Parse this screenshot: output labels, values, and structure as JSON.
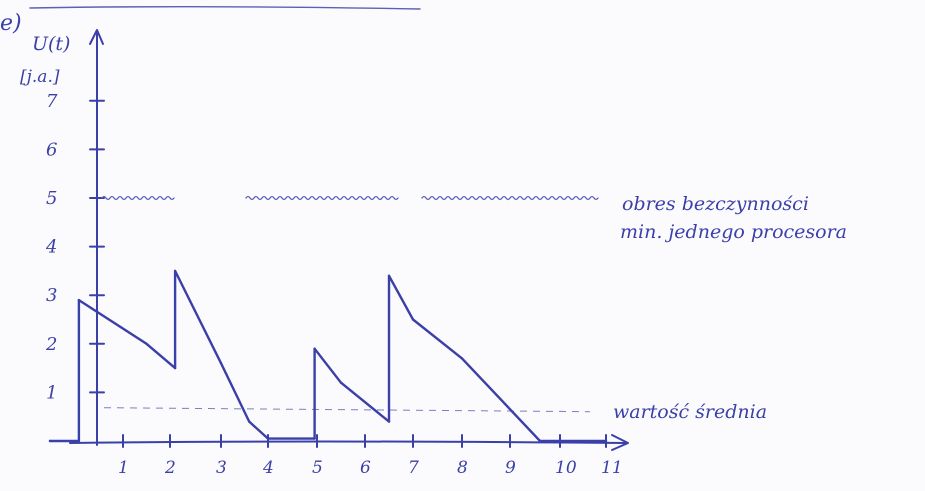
{
  "panel_label": "e)",
  "colors": {
    "ink": "#3b3fa8",
    "ink_light": "#5b60b8",
    "paper": "#fbfbfd"
  },
  "chart_data": {
    "type": "line",
    "ylabel": "U(t)",
    "yunit": "[j.a.]",
    "x_ticks": [
      1,
      2,
      3,
      4,
      5,
      6,
      7,
      8,
      9,
      10,
      11
    ],
    "y_ticks": [
      1,
      2,
      3,
      4,
      5,
      6,
      7
    ],
    "xlim": [
      -0.5,
      11.4
    ],
    "ylim": [
      0,
      8
    ],
    "series": [
      {
        "points": [
          [
            -0.5,
            0
          ],
          [
            0.1,
            0
          ],
          [
            0.1,
            2.9
          ],
          [
            1.5,
            2.0
          ],
          [
            2.1,
            1.5
          ],
          [
            2.1,
            3.5
          ],
          [
            3.0,
            1.6
          ],
          [
            3.6,
            0.4
          ],
          [
            4.0,
            0.05
          ],
          [
            4.95,
            0.05
          ],
          [
            4.95,
            1.9
          ],
          [
            5.5,
            1.2
          ],
          [
            6.5,
            0.4
          ],
          [
            6.5,
            3.4
          ],
          [
            7.0,
            2.5
          ],
          [
            8.0,
            1.7
          ],
          [
            9.6,
            0
          ],
          [
            11.0,
            0
          ]
        ]
      }
    ],
    "reference_lines": [
      {
        "y": 5.0,
        "style": "wavy",
        "label_lines": [
          "obres bezczynności",
          "min. jednego procesora"
        ]
      },
      {
        "y": 0.85,
        "style": "dashed",
        "label_lines": [
          "wartość średnia"
        ]
      }
    ],
    "grid": false
  }
}
